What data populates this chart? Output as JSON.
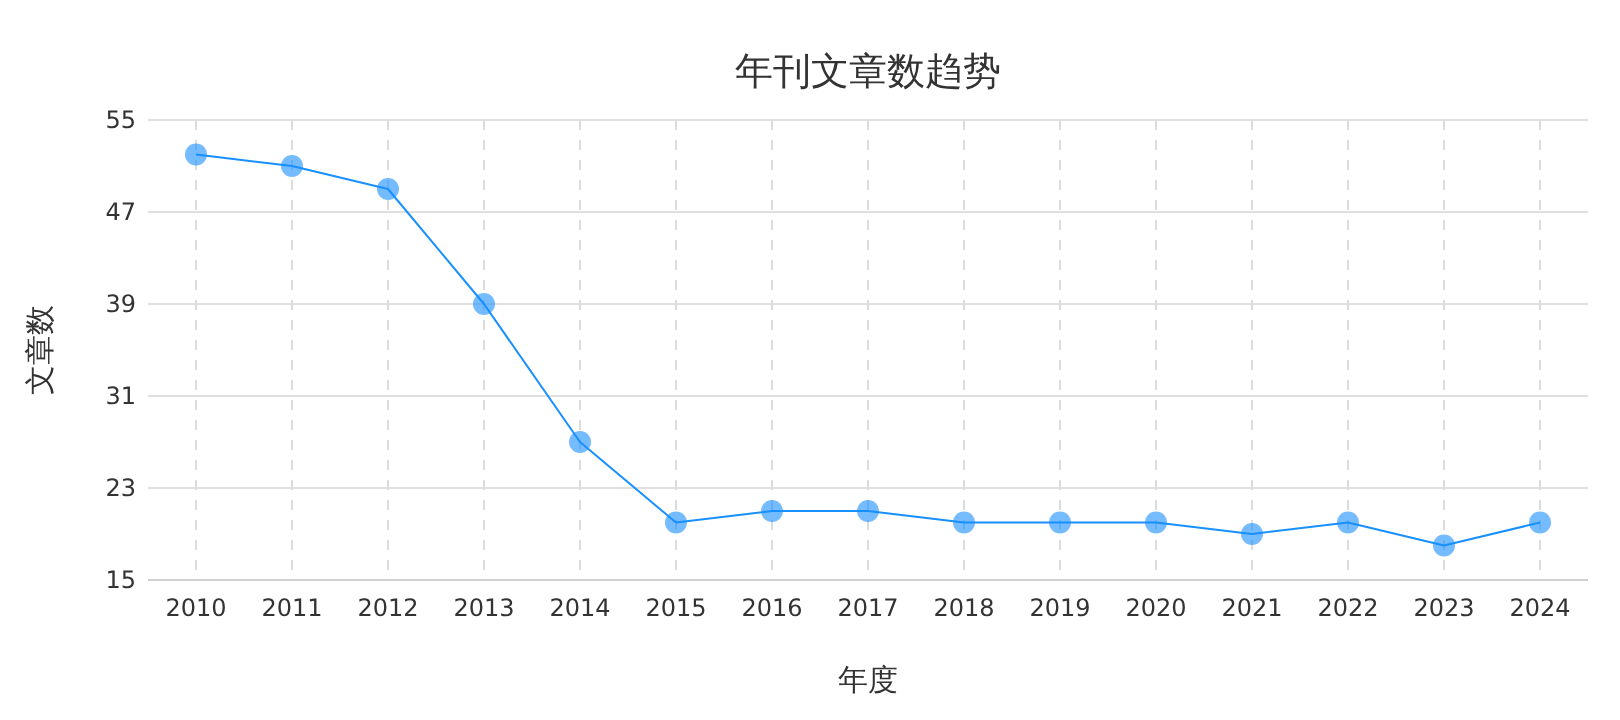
{
  "chart_data": {
    "type": "line",
    "title": "年刊文章数趋势",
    "xlabel": "年度",
    "ylabel": "文章数",
    "categories": [
      "2010",
      "2011",
      "2012",
      "2013",
      "2014",
      "2015",
      "2016",
      "2017",
      "2018",
      "2019",
      "2020",
      "2021",
      "2022",
      "2023",
      "2024"
    ],
    "series": [
      {
        "color": "#1890ff",
        "values": [
          52,
          51,
          49,
          39,
          27,
          20,
          21,
          21,
          20,
          20,
          20,
          19,
          20,
          18,
          20
        ]
      }
    ],
    "ylim": [
      15,
      55
    ],
    "yticks": [
      15,
      23,
      31,
      39,
      47,
      55
    ],
    "grid": true,
    "marker": "circle",
    "line_style": "solid"
  }
}
